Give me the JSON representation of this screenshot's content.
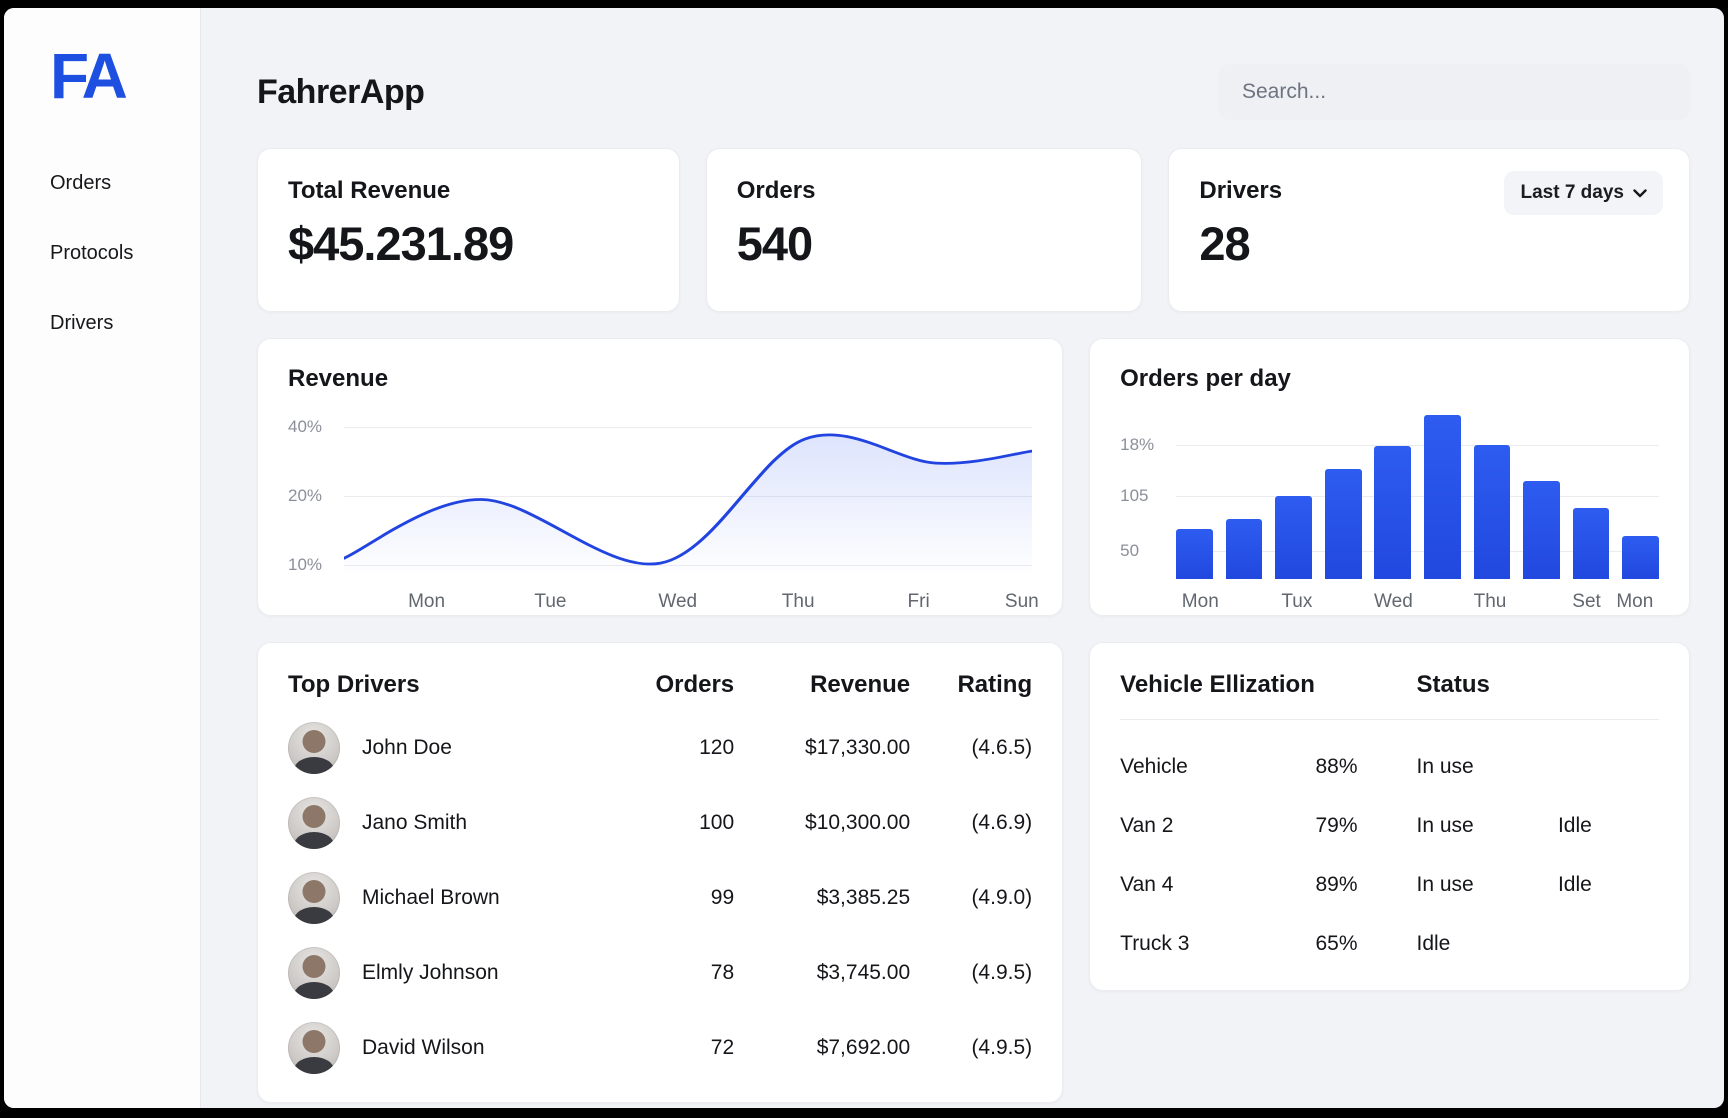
{
  "app": {
    "logo_text": "FA"
  },
  "colors": {
    "accent": "#1d4fe0",
    "bar_blue": "#2148df",
    "line_blue": "#2144e0"
  },
  "sidebar": {
    "items": [
      {
        "label": "Orders"
      },
      {
        "label": "Protocols"
      },
      {
        "label": "Drivers"
      }
    ]
  },
  "header": {
    "title": "FahrerApp",
    "search_placeholder": "Search..."
  },
  "stats": [
    {
      "label": "Total Revenue",
      "value": "$45.231.89"
    },
    {
      "label": "Orders",
      "value": "540"
    },
    {
      "label": "Drivers",
      "value": "28",
      "filter_label": "Last 7 days"
    }
  ],
  "chart_data": [
    {
      "type": "line",
      "title": "Revenue",
      "x_labels": [
        "Mon",
        "Tue",
        "Wed",
        "Thu",
        "Fri",
        "Sun"
      ],
      "x_label_pos_pct": [
        12,
        30,
        48.5,
        66,
        83.5,
        98.5
      ],
      "y_ticks": [
        {
          "label": "40%",
          "value": 40
        },
        {
          "label": "20%",
          "value": 20
        },
        {
          "label": "10%",
          "value": 10
        }
      ],
      "y_axis_range": [
        10,
        40
      ],
      "grid": true,
      "points": [
        {
          "x_pct": 0,
          "value": 11
        },
        {
          "x_pct": 20,
          "value": 19.5
        },
        {
          "x_pct": 46,
          "value": 10.3
        },
        {
          "x_pct": 67,
          "value": 36.5
        },
        {
          "x_pct": 86,
          "value": 29.5
        },
        {
          "x_pct": 100,
          "value": 33
        }
      ]
    },
    {
      "type": "bar",
      "title": "Orders per day",
      "x_labels": [
        "Mon",
        "Tux",
        "Wed",
        "Thu",
        "Set",
        "Mon"
      ],
      "x_label_bar_index": [
        0,
        2,
        4,
        6,
        8,
        9
      ],
      "y_ticks": [
        {
          "label": "18%",
          "pct_from_bottom": 81
        },
        {
          "label": "105",
          "pct_from_bottom": 50
        },
        {
          "label": "50",
          "pct_from_bottom": 17
        }
      ],
      "grid": true,
      "values": [
        72,
        82,
        105,
        132,
        155,
        187,
        156,
        121,
        95,
        66
      ],
      "height_pct": [
        30,
        36,
        50,
        66,
        80,
        99,
        81,
        59,
        43,
        26
      ]
    }
  ],
  "top_drivers": {
    "title": "Top Drivers",
    "columns": [
      "Orders",
      "Revenue",
      "Rating"
    ],
    "rows": [
      {
        "name": "John Doe",
        "orders": "120",
        "revenue": "$17,330.00",
        "rating": "(4.6.5)"
      },
      {
        "name": "Jano Smith",
        "orders": "100",
        "revenue": "$10,300.00",
        "rating": "(4.6.9)"
      },
      {
        "name": "Michael Brown",
        "orders": "99",
        "revenue": "$3,385.25",
        "rating": "(4.9.0)"
      },
      {
        "name": "Elmly Johnson",
        "orders": "78",
        "revenue": "$3,745.00",
        "rating": "(4.9.5)"
      },
      {
        "name": "David Wilson",
        "orders": "72",
        "revenue": "$7,692.00",
        "rating": "(4.9.5)"
      }
    ]
  },
  "vehicles": {
    "title": "Vehicle Ellization",
    "status_header": "Status",
    "rows": [
      {
        "name": "Vehicle",
        "utilization": "88%",
        "status": "In use",
        "status2": ""
      },
      {
        "name": "Van 2",
        "utilization": "79%",
        "status": "In use",
        "status2": "Idle"
      },
      {
        "name": "Van 4",
        "utilization": "89%",
        "status": "In use",
        "status2": "Idle"
      },
      {
        "name": "Truck 3",
        "utilization": "65%",
        "status": "Idle",
        "status2": ""
      }
    ]
  }
}
